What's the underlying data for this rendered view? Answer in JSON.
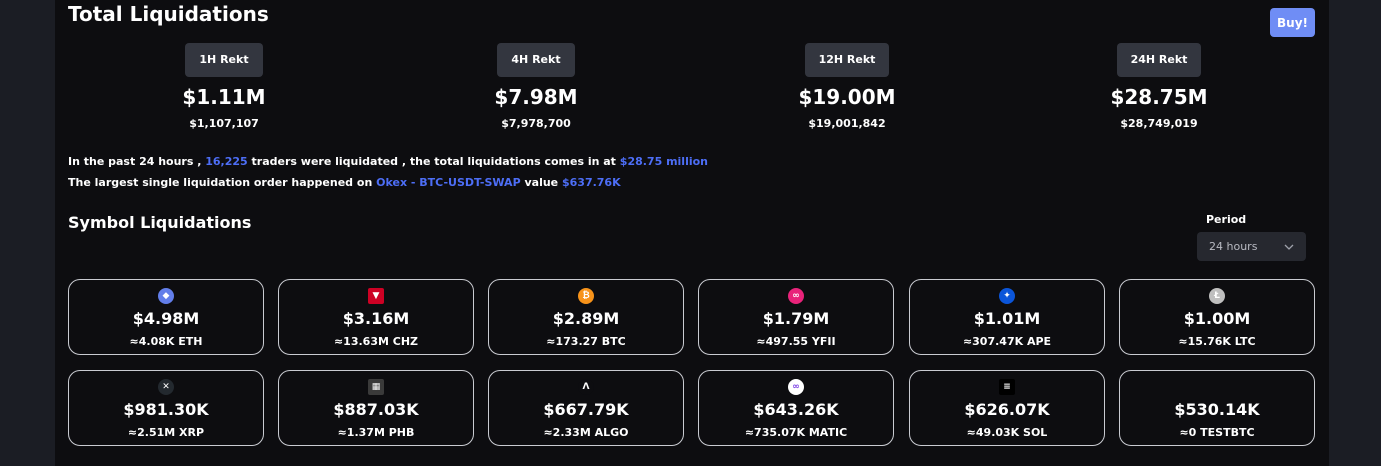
{
  "header": {
    "title": "Total Liquidations",
    "buy_label": "Buy!"
  },
  "rekt": [
    {
      "label": "1H Rekt",
      "value": "$1.11M",
      "exact": "$1,107,107"
    },
    {
      "label": "4H Rekt",
      "value": "$7.98M",
      "exact": "$7,978,700"
    },
    {
      "label": "12H Rekt",
      "value": "$19.00M",
      "exact": "$19,001,842"
    },
    {
      "label": "24H Rekt",
      "value": "$28.75M",
      "exact": "$28,749,019"
    }
  ],
  "summary": {
    "line1_a": "In the past 24 hours ,",
    "traders": "16,225",
    "line1_b": "traders were liquidated , the total liquidations comes in at",
    "total": "$28.75 million",
    "line2_a": "The largest single liquidation order happened on",
    "largest_pair": "Okex - BTC-USDT-SWAP",
    "line2_b": "value",
    "largest_value": "$637.76K"
  },
  "symbols": {
    "title": "Symbol Liquidations",
    "period_label": "Period",
    "period_value": "24 hours",
    "cards": [
      {
        "icon": "eth-icon",
        "glyph": "◆",
        "color": "#627eea",
        "value": "$4.98M",
        "amount": "≈4.08K ETH"
      },
      {
        "icon": "chz-icon",
        "glyph": "▼",
        "color": "#cd0124",
        "value": "$3.16M",
        "amount": "≈13.63M CHZ"
      },
      {
        "icon": "btc-icon",
        "glyph": "₿",
        "color": "#f7931a",
        "value": "$2.89M",
        "amount": "≈173.27 BTC"
      },
      {
        "icon": "yfii-icon",
        "glyph": "∞",
        "color": "#e8237a",
        "value": "$1.79M",
        "amount": "≈497.55 YFII"
      },
      {
        "icon": "ape-icon",
        "glyph": "✦",
        "color": "#0b55d9",
        "value": "$1.01M",
        "amount": "≈307.47K APE"
      },
      {
        "icon": "ltc-icon",
        "glyph": "Ł",
        "color": "#bfbfbf",
        "value": "$1.00M",
        "amount": "≈15.76K LTC"
      },
      {
        "icon": "xrp-icon",
        "glyph": "✕",
        "color": "#23292f",
        "value": "$981.30K",
        "amount": "≈2.51M XRP"
      },
      {
        "icon": "phb-icon",
        "glyph": "▦",
        "color": "#3a3a3a",
        "value": "$887.03K",
        "amount": "≈1.37M PHB"
      },
      {
        "icon": "algo-icon",
        "glyph": "Λ",
        "color": "#0d0d10",
        "value": "$667.79K",
        "amount": "≈2.33M ALGO"
      },
      {
        "icon": "matic-icon",
        "glyph": "∞",
        "color": "#ffffff",
        "value": "$643.26K",
        "amount": "≈735.07K MATIC"
      },
      {
        "icon": "sol-icon",
        "glyph": "≡",
        "color": "#000000",
        "value": "$626.07K",
        "amount": "≈49.03K SOL"
      },
      {
        "icon": "",
        "glyph": "",
        "color": "",
        "value": "$530.14K",
        "amount": "≈0 TESTBTC"
      }
    ]
  }
}
